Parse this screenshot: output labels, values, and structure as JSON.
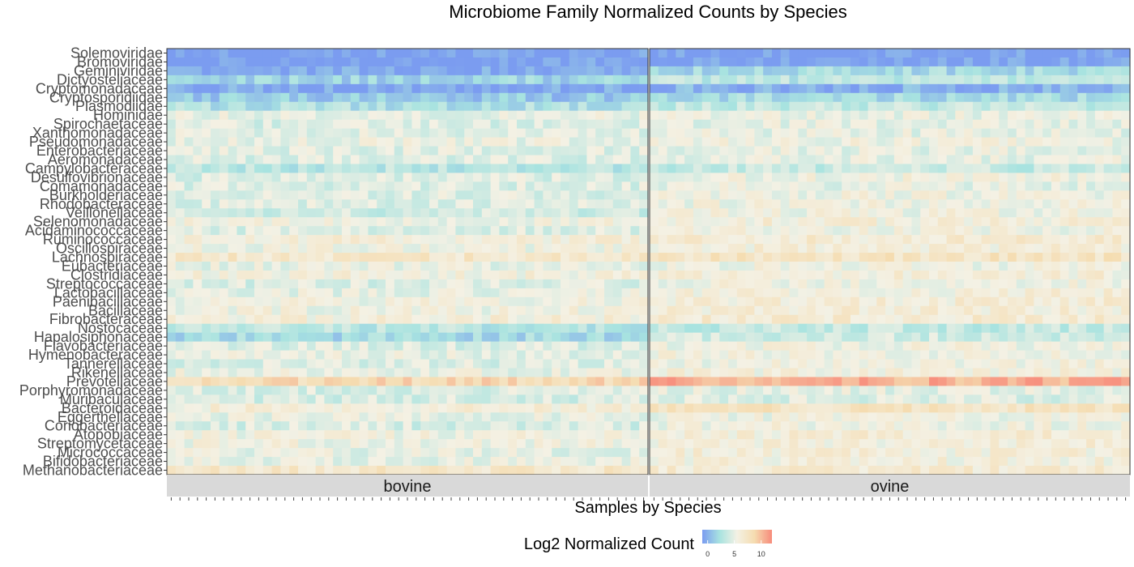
{
  "chart_data": {
    "type": "heatmap",
    "title": "Microbiome Family Normalized Counts by Species",
    "xlabel": "Samples by Species",
    "ylabel": "",
    "legend": {
      "title": "Log2 Normalized Count",
      "ticks": [
        0,
        5,
        10
      ],
      "range": [
        -1,
        12
      ],
      "colors": [
        "#7b9cf0",
        "#a8e3e0",
        "#f4f1e4",
        "#f5dcb0",
        "#f78b7b"
      ]
    },
    "families": [
      "Solemoviridae",
      "Bromoviridae",
      "Geminiviridae",
      "Dictyosteliaceae",
      "Cryptomonadaceae",
      "Cryptosporidiidae",
      "Plasmodiidae",
      "Hominidae",
      "Spirochaetaceae",
      "Xanthomonadaceae",
      "Pseudomonadaceae",
      "Enterobacteriaceae",
      "Aeromonadaceae",
      "Campylobacteraceae",
      "Desulfovibrionaceae",
      "Comamonadaceae",
      "Burkholderiaceae",
      "Rhodobacteraceae",
      "Veillonellaceae",
      "Selenomonadaceae",
      "Acidaminococcaceae",
      "Ruminococcaceae",
      "Oscillospiraceae",
      "Lachnospiraceae",
      "Eubacteriaceae",
      "Clostridiaceae",
      "Streptococcaceae",
      "Lactobacillaceae",
      "Paenibacillaceae",
      "Bacillaceae",
      "Fibrobacteraceae",
      "Nostocaceae",
      "Hapalosiphonaceae",
      "Flavobacteriaceae",
      "Hymenobacteraceae",
      "Tannerellaceae",
      "Rikenellaceae",
      "Prevotellaceae",
      "Porphyromonadaceae",
      "Muribaculaceae",
      "Bacteroidaceae",
      "Eggerthellaceae",
      "Coriobacteriaceae",
      "Atopobiaceae",
      "Streptomycetaceae",
      "Micrococcaceae",
      "Bifidobacteriaceae",
      "Methanobacteriaceae"
    ],
    "facets": [
      {
        "name": "bovine",
        "n_samples": 55,
        "family_mean_log2": [
          -1,
          -1,
          -0.5,
          1.5,
          -0.5,
          1,
          2.5,
          5,
          4.5,
          4.8,
          5.2,
          4.8,
          4.5,
          3,
          4.5,
          4.6,
          4.6,
          4.6,
          4,
          5.5,
          4.5,
          6,
          5.5,
          7,
          5,
          5.8,
          4.5,
          5,
          5.5,
          5.5,
          6,
          3,
          2,
          4.5,
          5,
          4.5,
          5.2,
          8.5,
          4.5,
          4.2,
          6,
          5,
          4.3,
          5.5,
          5.5,
          5,
          5,
          7
        ]
      },
      {
        "name": "ovine",
        "n_samples": 55,
        "family_mean_log2": [
          -1,
          -1,
          2,
          3,
          0,
          2,
          3.5,
          5,
          5,
          5,
          5.5,
          5,
          5,
          3.5,
          5.5,
          5,
          5.5,
          5.5,
          5.5,
          6,
          5.5,
          6.5,
          6,
          7.5,
          5.5,
          6,
          5.5,
          6,
          6.2,
          6.2,
          6.5,
          3.5,
          4,
          5.5,
          5.5,
          5.5,
          5.8,
          10.5,
          5,
          4.5,
          7.5,
          5.5,
          5.5,
          6.2,
          6,
          6,
          6,
          6.5
        ]
      }
    ]
  }
}
